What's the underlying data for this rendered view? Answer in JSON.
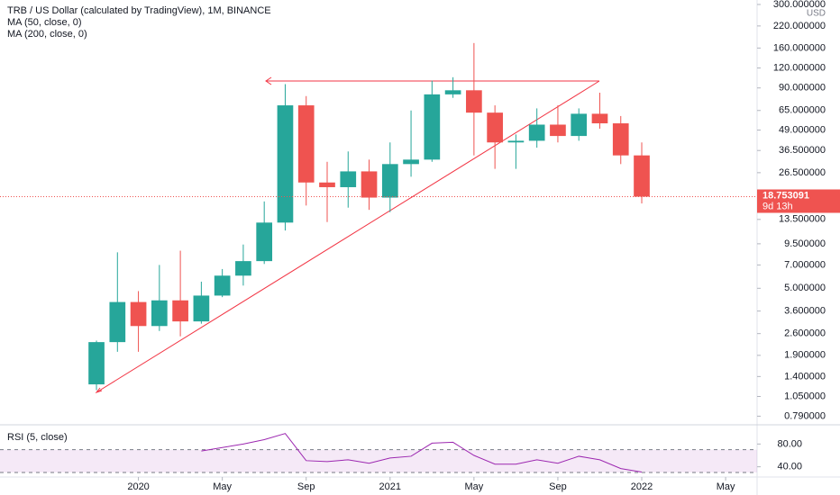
{
  "chart_data": [
    {
      "type": "candlestick",
      "title": "TRB / US Dollar (calculated by TradingView), 1M, BINANCE",
      "annotations": [
        "MA (50, close, 0)",
        "MA (200, close, 0)"
      ],
      "currency": "USD",
      "last_price": 18.753091,
      "countdown": "9d 13h",
      "log_scale": true,
      "up_color": "#26a69a",
      "down_color": "#ef5350",
      "open": [
        1.25,
        2.3,
        4.1,
        2.9,
        4.2,
        3.1,
        4.5,
        6.0,
        7.4,
        12.9,
        70,
        23,
        21.5,
        27,
        18.5,
        30,
        32,
        82,
        87,
        63,
        41,
        42,
        53,
        45,
        62,
        54,
        34
      ],
      "high": [
        2.35,
        8.4,
        4.8,
        7.0,
        8.6,
        5.5,
        6.6,
        9.4,
        17.5,
        95,
        80,
        31,
        36,
        32,
        41,
        65,
        100,
        105,
        172,
        70,
        46,
        67,
        70,
        67,
        84,
        60,
        41
      ],
      "low": [
        1.15,
        2.0,
        2.0,
        2.7,
        2.5,
        3.0,
        4.4,
        5.2,
        7.1,
        11.5,
        16.5,
        13,
        16,
        15.5,
        15,
        25,
        31,
        78,
        34,
        28,
        28,
        38,
        41,
        42,
        50,
        30,
        17
      ],
      "close": [
        2.3,
        4.1,
        2.9,
        4.2,
        3.1,
        4.5,
        6.0,
        7.4,
        12.9,
        70,
        23,
        21.5,
        27,
        18.5,
        30,
        32,
        82,
        87,
        63,
        41,
        42,
        53,
        45,
        62,
        54,
        34,
        18.753091
      ],
      "xlim": [
        -4.6,
        31.5
      ],
      "xticks": [
        {
          "value": 2,
          "label": "2020"
        },
        {
          "value": 6,
          "label": "May"
        },
        {
          "value": 10,
          "label": "Sep"
        },
        {
          "value": 14,
          "label": "2021"
        },
        {
          "value": 18,
          "label": "May"
        },
        {
          "value": 22,
          "label": "Sep"
        },
        {
          "value": 26,
          "label": "2022"
        },
        {
          "value": 30,
          "label": "May"
        }
      ],
      "ylim": [
        0.716,
        320
      ],
      "yticks": [
        {
          "value": 300,
          "label": "300.000000"
        },
        {
          "value": 220,
          "label": "220.000000"
        },
        {
          "value": 160,
          "label": "160.000000"
        },
        {
          "value": 120,
          "label": "120.000000"
        },
        {
          "value": 90,
          "label": "90.000000"
        },
        {
          "value": 65,
          "label": "65.000000"
        },
        {
          "value": 49,
          "label": "49.000000"
        },
        {
          "value": 36.5,
          "label": "36.500000"
        },
        {
          "value": 26.5,
          "label": "26.500000"
        },
        {
          "value": 13.5,
          "label": "13.500000"
        },
        {
          "value": 9.5,
          "label": "9.500000"
        },
        {
          "value": 7,
          "label": "7.000000"
        },
        {
          "value": 5,
          "label": "5.000000"
        },
        {
          "value": 3.6,
          "label": "3.600000"
        },
        {
          "value": 2.6,
          "label": "2.600000"
        },
        {
          "value": 1.9,
          "label": "1.900000"
        },
        {
          "value": 1.4,
          "label": "1.400000"
        },
        {
          "value": 1.05,
          "label": "1.050000"
        },
        {
          "value": 0.79,
          "label": "0.790000"
        }
      ]
    },
    {
      "type": "line",
      "title": "RSI (5, close)",
      "color": "#9c27b0",
      "values": [
        null,
        null,
        null,
        null,
        null,
        67.7,
        73.8,
        80,
        87.7,
        98.5,
        50.8,
        49.2,
        52.3,
        46.2,
        55.4,
        58.5,
        81.5,
        83.1,
        60,
        44.6,
        44.6,
        52.3,
        46.2,
        58.5,
        52.3,
        36.9,
        30.8
      ],
      "band": [
        30,
        70
      ],
      "ylim": [
        6.2,
        113.8
      ],
      "yticks": [
        {
          "value": 80,
          "label": "80.00"
        },
        {
          "value": 40,
          "label": "40.00"
        }
      ]
    }
  ]
}
